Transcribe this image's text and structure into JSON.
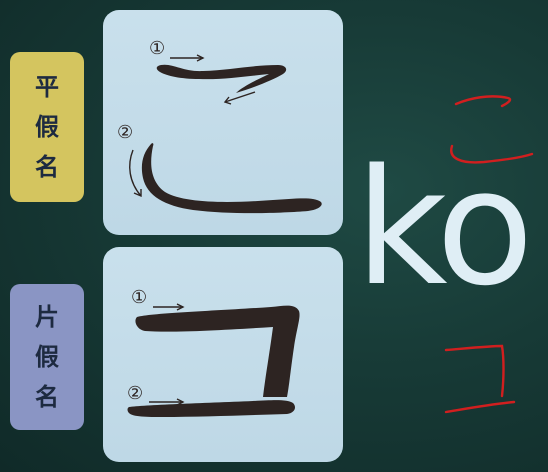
{
  "labels": {
    "hiragana": [
      "平",
      "假",
      "名"
    ],
    "katakana": [
      "片",
      "假",
      "名"
    ]
  },
  "romaji": "ko",
  "stroke_numbers": {
    "first": "①",
    "second": "②"
  },
  "colors": {
    "background": "#173a36",
    "hiragana_label": "#d4c55f",
    "katakana_label": "#8a95c4",
    "card": "#c4dcea",
    "ink": "#2d2422",
    "arrow": "#2d2422",
    "annotation": "#d11f1f",
    "romaji": "#dfeef5"
  }
}
